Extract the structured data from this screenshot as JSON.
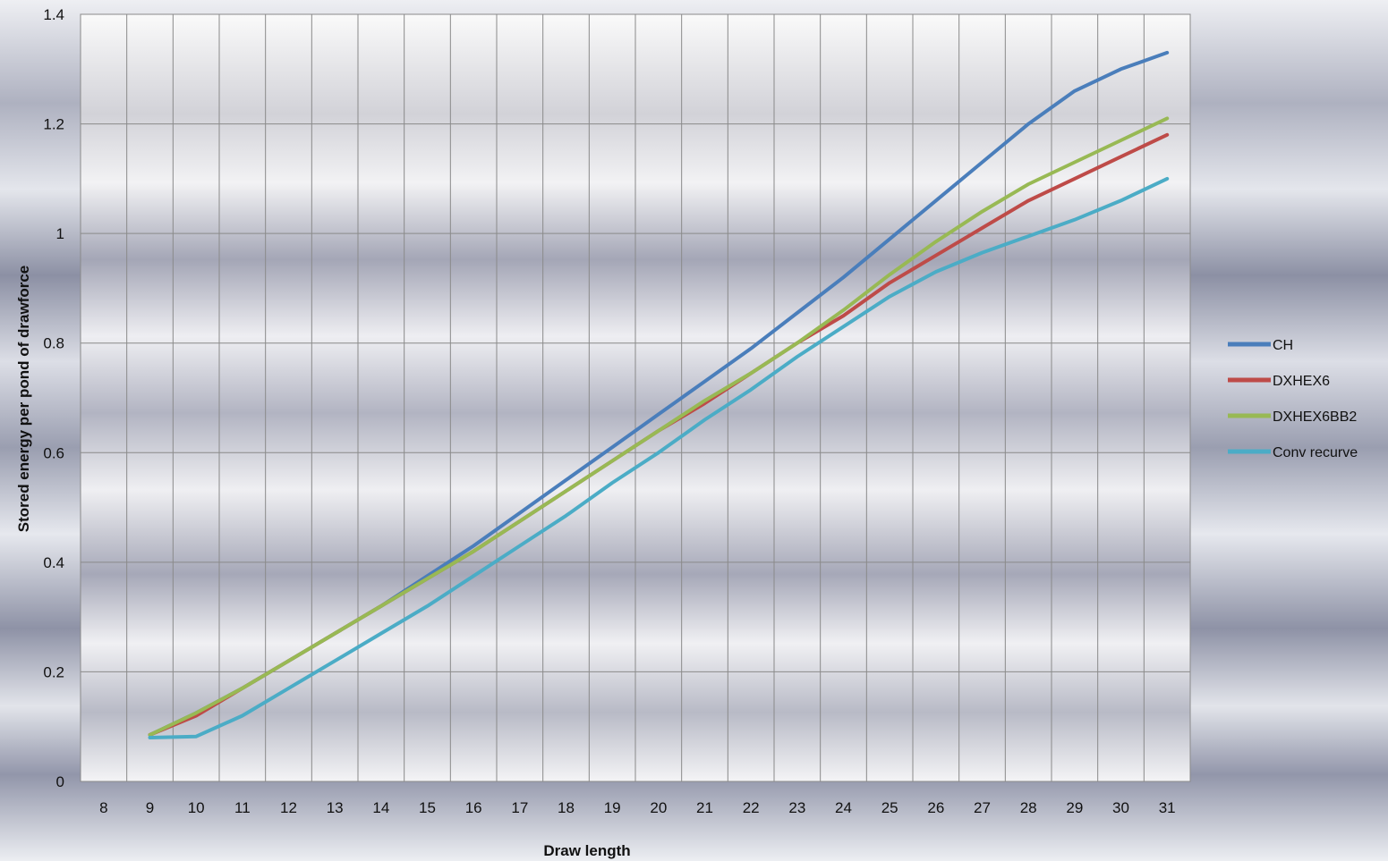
{
  "chart_data": {
    "type": "line",
    "title": "",
    "xlabel": "Draw length",
    "ylabel": "Stored energy per pond of drawforce",
    "x": [
      8,
      9,
      10,
      11,
      12,
      13,
      14,
      15,
      16,
      17,
      18,
      19,
      20,
      21,
      22,
      23,
      24,
      25,
      26,
      27,
      28,
      29,
      30,
      31
    ],
    "xlim": [
      7.5,
      31.5
    ],
    "ylim": [
      0,
      1.4
    ],
    "yticks": [
      "0",
      "0.2",
      "0.4",
      "0.6",
      "0.8",
      "1",
      "1.2",
      "1.4"
    ],
    "grid": true,
    "legend_position": "right",
    "series": [
      {
        "name": "CH",
        "color": "#4a7ebb",
        "x": [
          9,
          10,
          11,
          12,
          13,
          14,
          15,
          16,
          17,
          18,
          19,
          20,
          21,
          22,
          23,
          24,
          25,
          26,
          27,
          28,
          29,
          30,
          31
        ],
        "values": [
          0.085,
          0.125,
          0.17,
          0.22,
          0.27,
          0.32,
          0.375,
          0.43,
          0.49,
          0.55,
          0.61,
          0.67,
          0.73,
          0.79,
          0.855,
          0.92,
          0.99,
          1.06,
          1.13,
          1.2,
          1.26,
          1.3,
          1.33
        ]
      },
      {
        "name": "DXHEX6",
        "color": "#be4b48",
        "x": [
          9,
          10,
          11,
          12,
          13,
          14,
          15,
          16,
          17,
          18,
          19,
          20,
          21,
          22,
          23,
          24,
          25,
          26,
          27,
          28,
          29,
          30,
          31
        ],
        "values": [
          0.085,
          0.12,
          0.17,
          0.22,
          0.27,
          0.32,
          0.37,
          0.42,
          0.475,
          0.53,
          0.585,
          0.64,
          0.69,
          0.745,
          0.8,
          0.85,
          0.91,
          0.96,
          1.01,
          1.06,
          1.1,
          1.14,
          1.18
        ]
      },
      {
        "name": "DXHEX6BB2",
        "color": "#98b954",
        "x": [
          9,
          10,
          11,
          12,
          13,
          14,
          15,
          16,
          17,
          18,
          19,
          20,
          21,
          22,
          23,
          24,
          25,
          26,
          27,
          28,
          29,
          30,
          31
        ],
        "values": [
          0.085,
          0.125,
          0.17,
          0.22,
          0.27,
          0.32,
          0.37,
          0.42,
          0.475,
          0.53,
          0.585,
          0.64,
          0.695,
          0.745,
          0.8,
          0.86,
          0.925,
          0.985,
          1.04,
          1.09,
          1.13,
          1.17,
          1.21
        ]
      },
      {
        "name": "Conv recurve",
        "color": "#4bacc6",
        "x": [
          9,
          10,
          11,
          12,
          13,
          14,
          15,
          16,
          17,
          18,
          19,
          20,
          21,
          22,
          23,
          24,
          25,
          26,
          27,
          28,
          29,
          30,
          31
        ],
        "values": [
          0.08,
          0.082,
          0.12,
          0.17,
          0.22,
          0.27,
          0.32,
          0.375,
          0.43,
          0.485,
          0.545,
          0.6,
          0.66,
          0.715,
          0.775,
          0.83,
          0.885,
          0.93,
          0.965,
          0.995,
          1.025,
          1.06,
          1.1
        ]
      }
    ]
  }
}
